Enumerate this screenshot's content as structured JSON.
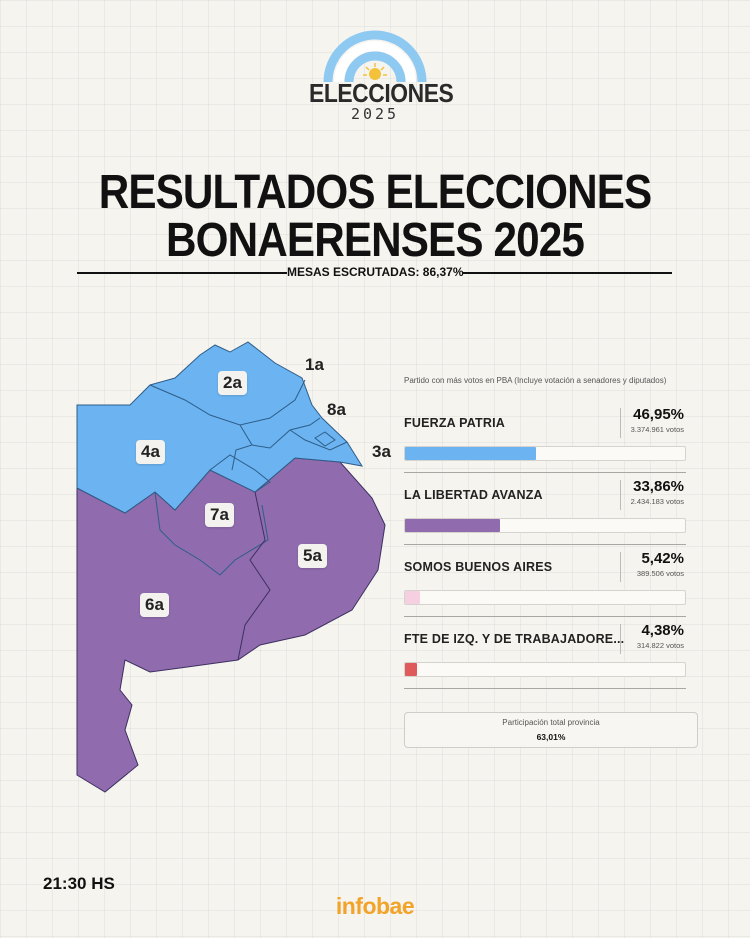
{
  "header": {
    "logo_title": "ELECCIONES",
    "logo_year": "2025",
    "title_line1": "RESULTADOS ELECCIONES",
    "title_line2": "BONAERENSES 2025",
    "mesas": "MESAS ESCRUTADAS: 86,37%"
  },
  "map": {
    "sections": [
      "1a",
      "2a",
      "3a",
      "4a",
      "5a",
      "6a",
      "7a",
      "8a"
    ],
    "colors": {
      "fuerza_patria": "#6cb4f1",
      "libertad_avanza": "#906cae"
    }
  },
  "panel": {
    "caption": "Partido con más votos en PBA (Incluye votación a senadores y diputados)",
    "parties": [
      {
        "name": "FUERZA PATRIA",
        "pct": "46,95%",
        "votes": "3.374.961 votos",
        "share": 46.95,
        "color": "#6cb4f1"
      },
      {
        "name": "LA LIBERTAD AVANZA",
        "pct": "33,86%",
        "votes": "2.434.183 votos",
        "share": 33.86,
        "color": "#906cae"
      },
      {
        "name": "SOMOS BUENOS AIRES",
        "pct": "5,42%",
        "votes": "389.506 votos",
        "share": 5.42,
        "color": "#f6cfe0"
      },
      {
        "name": "FTE DE IZQ. Y DE TRABAJADORE...",
        "pct": "4,38%",
        "votes": "314.822 votos",
        "share": 4.38,
        "color": "#df5b5b"
      }
    ],
    "participation_label": "Participación total provincia",
    "participation_value": "63,01%"
  },
  "footer": {
    "time": "21:30 HS",
    "brand": "infobae"
  }
}
